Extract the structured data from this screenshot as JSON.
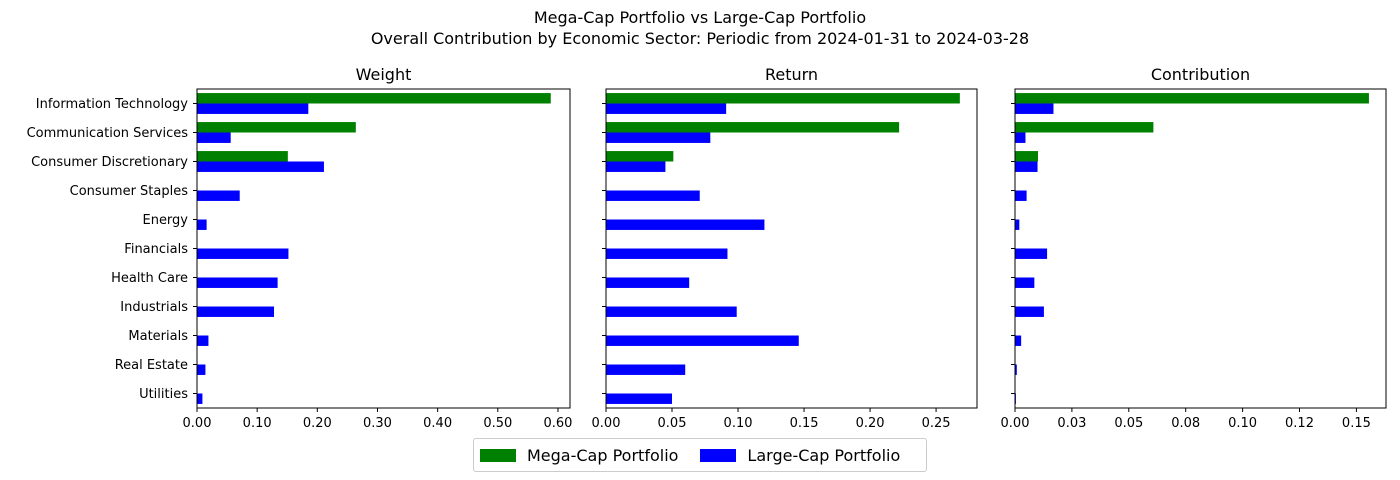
{
  "title_line1": "Mega-Cap Portfolio vs Large-Cap Portfolio",
  "title_line2": "Overall Contribution by Economic Sector: Periodic from 2024-01-31 to 2024-03-28",
  "colors": {
    "mega": "#008000",
    "large": "#0000ff"
  },
  "legend": [
    {
      "label": "Mega-Cap Portfolio",
      "color": "#008000"
    },
    {
      "label": "Large-Cap Portfolio",
      "color": "#0000ff"
    }
  ],
  "chart_data": [
    {
      "type": "bar",
      "orientation": "horizontal",
      "title": "Weight",
      "categories": [
        "Information Technology",
        "Communication Services",
        "Consumer Discretionary",
        "Consumer Staples",
        "Energy",
        "Financials",
        "Health Care",
        "Industrials",
        "Materials",
        "Real Estate",
        "Utilities"
      ],
      "series": [
        {
          "name": "Mega-Cap Portfolio",
          "values": [
            0.588,
            0.264,
            0.151,
            0,
            0,
            0,
            0,
            0,
            0,
            0,
            0
          ]
        },
        {
          "name": "Large-Cap Portfolio",
          "values": [
            0.185,
            0.056,
            0.211,
            0.071,
            0.016,
            0.152,
            0.134,
            0.128,
            0.019,
            0.014,
            0.009
          ]
        }
      ],
      "xlim": [
        0,
        0.62
      ],
      "xticks": [
        0.0,
        0.1,
        0.2,
        0.3,
        0.4,
        0.5,
        0.6
      ],
      "xtick_labels": [
        "0.00",
        "0.10",
        "0.20",
        "0.30",
        "0.40",
        "0.50",
        "0.60"
      ],
      "grid": false
    },
    {
      "type": "bar",
      "orientation": "horizontal",
      "title": "Return",
      "categories": [
        "Information Technology",
        "Communication Services",
        "Consumer Discretionary",
        "Consumer Staples",
        "Energy",
        "Financials",
        "Health Care",
        "Industrials",
        "Materials",
        "Real Estate",
        "Utilities"
      ],
      "series": [
        {
          "name": "Mega-Cap Portfolio",
          "values": [
            0.268,
            0.222,
            0.051,
            0,
            0,
            0,
            0,
            0,
            0,
            0,
            0
          ]
        },
        {
          "name": "Large-Cap Portfolio",
          "values": [
            0.091,
            0.079,
            0.045,
            0.071,
            0.12,
            0.092,
            0.063,
            0.099,
            0.146,
            0.06,
            0.05
          ]
        }
      ],
      "xlim": [
        0,
        0.281
      ],
      "xticks": [
        0.0,
        0.05,
        0.1,
        0.15,
        0.2,
        0.25
      ],
      "xtick_labels": [
        "0.00",
        "0.05",
        "0.10",
        "0.15",
        "0.20",
        "0.25"
      ],
      "grid": false
    },
    {
      "type": "bar",
      "orientation": "horizontal",
      "title": "Contribution",
      "categories": [
        "Information Technology",
        "Communication Services",
        "Consumer Discretionary",
        "Consumer Staples",
        "Energy",
        "Financials",
        "Health Care",
        "Industrials",
        "Materials",
        "Real Estate",
        "Utilities"
      ],
      "series": [
        {
          "name": "Mega-Cap Portfolio",
          "values": [
            0.1555,
            0.0608,
            0.0101,
            0,
            0,
            0,
            0,
            0,
            0,
            0,
            0
          ]
        },
        {
          "name": "Large-Cap Portfolio",
          "values": [
            0.0169,
            0.0046,
            0.0099,
            0.0051,
            0.0019,
            0.0141,
            0.0085,
            0.0127,
            0.0027,
            0.0008,
            0.0004
          ]
        }
      ],
      "xlim": [
        0,
        0.163
      ],
      "xticks": [
        0.0,
        0.025,
        0.05,
        0.075,
        0.1,
        0.125,
        0.15
      ],
      "xtick_labels": [
        "0.00",
        "0.03",
        "0.05",
        "0.08",
        "0.10",
        "0.12",
        "0.15"
      ],
      "grid": false
    }
  ]
}
